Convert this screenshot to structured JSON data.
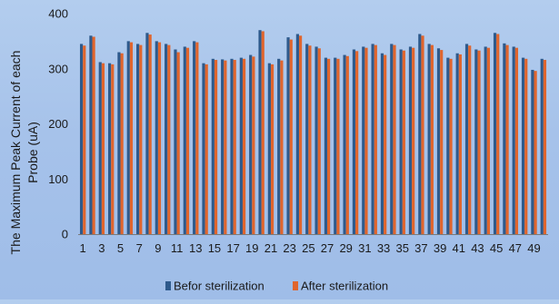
{
  "chart_data": {
    "type": "bar",
    "title": "",
    "xlabel": "",
    "ylabel": "The Maximum Peak Current of each Probe (uA)",
    "ylabel_lines": [
      "The Maximum Peak Current of each",
      "Probe (uA)"
    ],
    "ylim": [
      0,
      400
    ],
    "yticks": [
      0,
      100,
      200,
      300,
      400
    ],
    "grid": false,
    "legend_position": "bottom",
    "categories": [
      1,
      2,
      3,
      4,
      5,
      6,
      7,
      8,
      9,
      10,
      11,
      12,
      13,
      14,
      15,
      16,
      17,
      18,
      19,
      20,
      21,
      22,
      23,
      24,
      25,
      26,
      27,
      28,
      29,
      30,
      31,
      32,
      33,
      34,
      35,
      36,
      37,
      38,
      39,
      40,
      41,
      42,
      43,
      44,
      45,
      46,
      47,
      48,
      49,
      50
    ],
    "xtick_labels": [
      "1",
      "3",
      "5",
      "7",
      "9",
      "11",
      "13",
      "15",
      "17",
      "19",
      "21",
      "23",
      "25",
      "27",
      "29",
      "31",
      "33",
      "35",
      "37",
      "39",
      "41",
      "43",
      "45",
      "47",
      "49"
    ],
    "series": [
      {
        "name": "Befor sterilization",
        "color": "#2e5a8c",
        "values": [
          345,
          360,
          312,
          310,
          330,
          350,
          345,
          365,
          350,
          345,
          335,
          340,
          350,
          310,
          318,
          317,
          318,
          320,
          325,
          370,
          310,
          318,
          357,
          363,
          345,
          340,
          320,
          320,
          325,
          335,
          340,
          345,
          328,
          345,
          335,
          340,
          363,
          345,
          337,
          320,
          328,
          345,
          335,
          340,
          365,
          346,
          340,
          320,
          298,
          318
        ]
      },
      {
        "name": "After sterilization",
        "color": "#e0652d",
        "values": [
          342,
          358,
          310,
          308,
          328,
          348,
          343,
          362,
          348,
          343,
          330,
          338,
          348,
          308,
          316,
          315,
          316,
          318,
          322,
          368,
          308,
          315,
          353,
          360,
          342,
          337,
          318,
          318,
          323,
          332,
          338,
          343,
          325,
          343,
          333,
          338,
          360,
          343,
          334,
          318,
          326,
          342,
          333,
          338,
          363,
          343,
          338,
          318,
          296,
          316
        ]
      }
    ]
  }
}
